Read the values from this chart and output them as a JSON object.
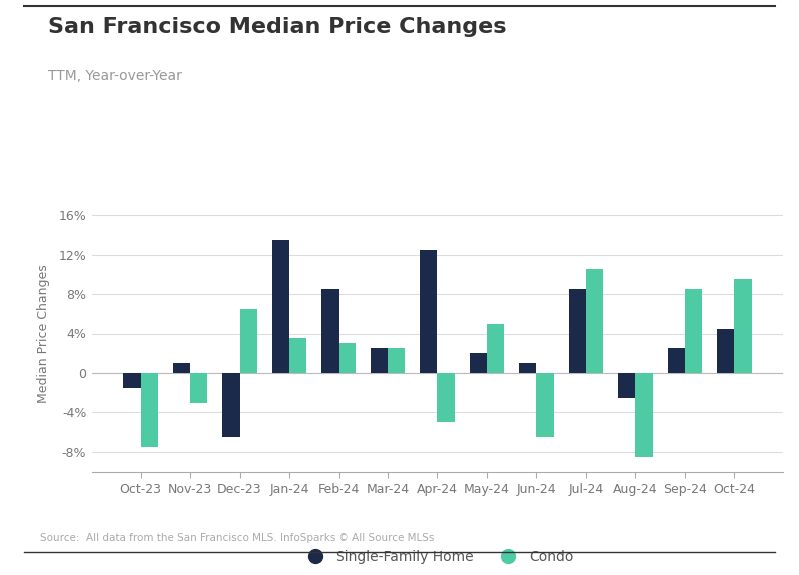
{
  "title": "San Francisco Median Price Changes",
  "subtitle": "TTM, Year-over-Year",
  "ylabel": "Median Price Changes",
  "source": "Source:  All data from the San Francisco MLS. InfoSparks © All Source MLSs",
  "categories": [
    "Oct-23",
    "Nov-23",
    "Dec-23",
    "Jan-24",
    "Feb-24",
    "Mar-24",
    "Apr-24",
    "May-24",
    "Jun-24",
    "Jul-24",
    "Aug-24",
    "Sep-24",
    "Oct-24"
  ],
  "single_family": [
    -1.5,
    1.0,
    -6.5,
    13.5,
    8.5,
    2.5,
    12.5,
    2.0,
    1.0,
    8.5,
    -2.5,
    2.5,
    4.5
  ],
  "condo": [
    -7.5,
    -3.0,
    6.5,
    3.5,
    3.0,
    2.5,
    -5.0,
    5.0,
    -6.5,
    10.5,
    -8.5,
    8.5,
    9.5
  ],
  "sfh_color": "#1b2a4a",
  "condo_color": "#4ecba3",
  "background_color": "#ffffff",
  "grid_color": "#dddddd",
  "ylim": [
    -10,
    18
  ],
  "yticks": [
    -8,
    -4,
    0,
    4,
    8,
    12,
    16
  ],
  "ytick_labels": [
    "-8%",
    "-4%",
    "0",
    "4%",
    "8%",
    "12%",
    "16%"
  ],
  "bar_width": 0.35,
  "legend_labels": [
    "Single-Family Home",
    "Condo"
  ],
  "title_fontsize": 16,
  "subtitle_fontsize": 10,
  "tick_fontsize": 9,
  "ylabel_fontsize": 9
}
